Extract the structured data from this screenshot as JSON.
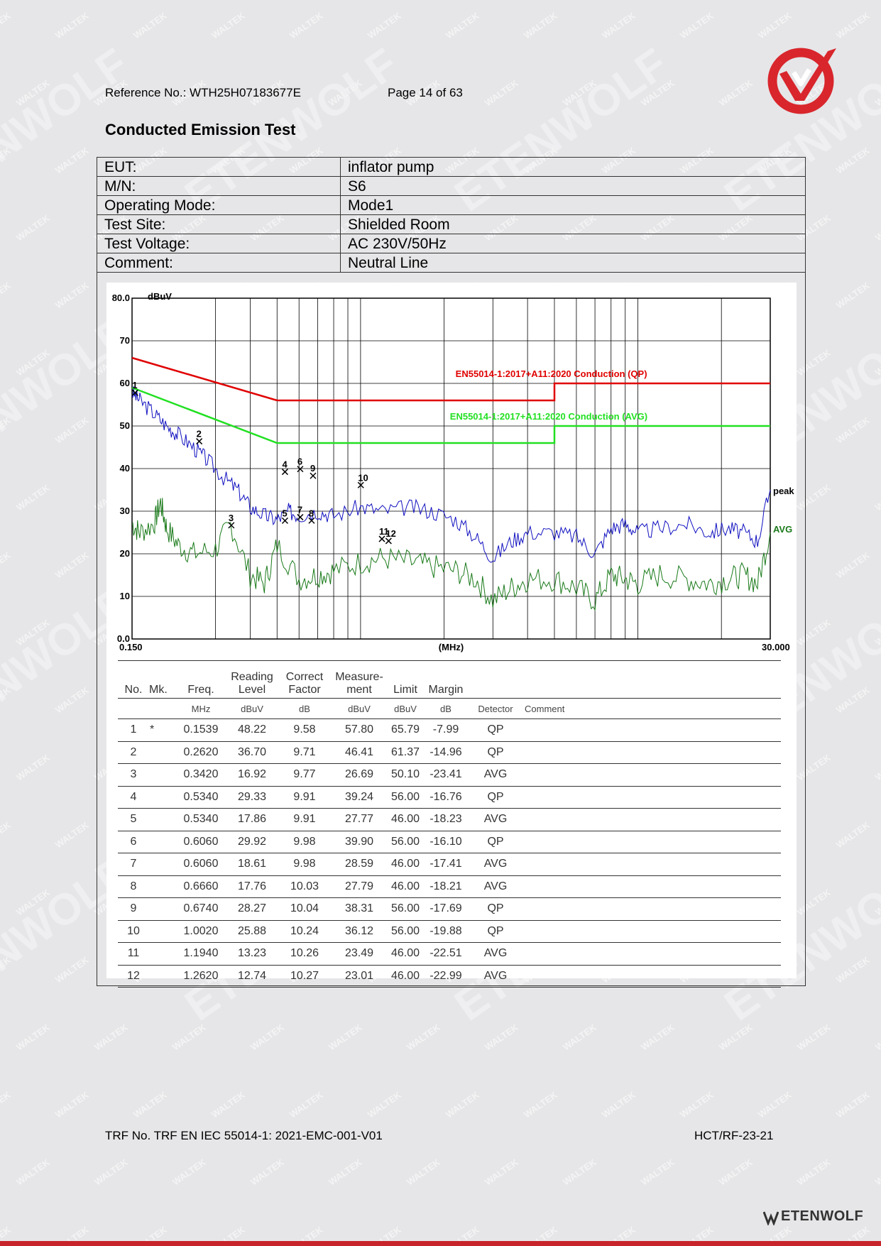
{
  "header": {
    "reference": "Reference No.: WTH25H07183677E",
    "page": "Page 14 of 63",
    "title": "Conducted Emission Test"
  },
  "colors": {
    "brand_red": "#d8262c",
    "qp_limit": "#e00000",
    "avg_limit": "#22e022",
    "peak_trace": "#1010c0",
    "avg_trace": "#1a7a1a"
  },
  "info": [
    {
      "label": "EUT:",
      "value": "inflator pump"
    },
    {
      "label": "M/N:",
      "value": "S6"
    },
    {
      "label": "Operating Mode:",
      "value": "Mode1"
    },
    {
      "label": "Test Site:",
      "value": "Shielded Room"
    },
    {
      "label": "Test Voltage:",
      "value": "AC 230V/50Hz"
    },
    {
      "label": "Comment:",
      "value": "Neutral Line"
    }
  ],
  "chart_data": {
    "type": "line",
    "xscale": "log",
    "xlim": [
      0.15,
      30
    ],
    "ylim": [
      0,
      80
    ],
    "ylabel": "dBuV",
    "xlabel": "(MHz)",
    "x_tick_labels": [
      "0.150",
      "30.000"
    ],
    "y_tick_labels": [
      "0.0",
      "10",
      "20",
      "30",
      "40",
      "50",
      "60",
      "70",
      "80.0"
    ],
    "limit_qp": {
      "name": "EN55014-1:2017+A11:2020 Conduction (QP)",
      "x": [
        0.15,
        0.5,
        0.5,
        5,
        5,
        30
      ],
      "y": [
        66,
        56,
        56,
        56,
        60,
        60
      ]
    },
    "limit_avg": {
      "name": "EN55014-1:2017+A11:2020 Conduction (AVG)",
      "x": [
        0.15,
        0.5,
        0.5,
        5,
        5,
        30
      ],
      "y": [
        59,
        46,
        46,
        46,
        50,
        50
      ]
    },
    "series": [
      {
        "name": "peak",
        "x": [
          0.15,
          0.16,
          0.18,
          0.2,
          0.22,
          0.25,
          0.28,
          0.32,
          0.36,
          0.4,
          0.45,
          0.5,
          0.55,
          0.6,
          0.7,
          0.8,
          1.0,
          1.2,
          1.5,
          1.8,
          2.2,
          2.6,
          3.0,
          3.5,
          4.0,
          5.0,
          6.0,
          7.0,
          8.0,
          9.0,
          10.0,
          12.0,
          15.0,
          18.0,
          21.0,
          24.0,
          27.0,
          30.0
        ],
        "y": [
          58,
          56,
          53,
          50,
          48,
          45,
          42,
          38,
          35,
          31,
          29,
          28,
          30,
          29,
          30,
          29,
          31,
          30,
          31,
          30,
          28,
          24,
          19,
          23,
          25,
          25,
          24,
          20,
          26,
          27,
          25,
          26,
          27,
          25,
          26,
          25,
          23,
          35
        ]
      },
      {
        "name": "AVG",
        "x": [
          0.15,
          0.16,
          0.18,
          0.19,
          0.2,
          0.22,
          0.25,
          0.3,
          0.34,
          0.4,
          0.45,
          0.5,
          0.6,
          0.7,
          0.8,
          1.0,
          1.2,
          1.5,
          1.8,
          2.2,
          2.6,
          3.0,
          3.5,
          4.0,
          5.0,
          6.0,
          7.0,
          8.0,
          9.0,
          10.0,
          12.0,
          15.0,
          18.0,
          21.0,
          24.0,
          27.0,
          30.0
        ],
        "y": [
          27,
          25,
          27,
          32,
          26,
          22,
          20,
          21,
          27,
          15,
          13,
          22,
          14,
          15,
          16,
          18,
          19,
          18,
          17,
          16,
          14,
          9,
          12,
          14,
          14,
          12,
          9,
          15,
          14,
          13,
          15,
          14,
          13,
          14,
          15,
          13,
          25
        ]
      }
    ],
    "markers": [
      {
        "label": "1",
        "x": 0.1539,
        "y": 57.8
      },
      {
        "label": "2",
        "x": 0.262,
        "y": 46.41
      },
      {
        "label": "3",
        "x": 0.342,
        "y": 26.69
      },
      {
        "label": "4",
        "x": 0.534,
        "y": 39.24
      },
      {
        "label": "5",
        "x": 0.534,
        "y": 27.77
      },
      {
        "label": "6",
        "x": 0.606,
        "y": 39.9
      },
      {
        "label": "7",
        "x": 0.606,
        "y": 28.59
      },
      {
        "label": "8",
        "x": 0.666,
        "y": 27.79
      },
      {
        "label": "9",
        "x": 0.674,
        "y": 38.31
      },
      {
        "label": "10",
        "x": 1.002,
        "y": 36.12
      },
      {
        "label": "11",
        "x": 1.194,
        "y": 23.49
      },
      {
        "label": "12",
        "x": 1.262,
        "y": 23.01
      }
    ]
  },
  "results": {
    "headers": [
      "No.",
      "Mk.",
      "Freq.",
      "Reading Level",
      "Correct Factor",
      "Measure-ment",
      "Limit",
      "Margin",
      "",
      ""
    ],
    "units": [
      "",
      "",
      "MHz",
      "dBuV",
      "dB",
      "dBuV",
      "dBuV",
      "dB",
      "Detector",
      "Comment"
    ],
    "rows": [
      [
        "1",
        "*",
        "0.1539",
        "48.22",
        "9.58",
        "57.80",
        "65.79",
        "-7.99",
        "QP",
        ""
      ],
      [
        "2",
        "",
        "0.2620",
        "36.70",
        "9.71",
        "46.41",
        "61.37",
        "-14.96",
        "QP",
        ""
      ],
      [
        "3",
        "",
        "0.3420",
        "16.92",
        "9.77",
        "26.69",
        "50.10",
        "-23.41",
        "AVG",
        ""
      ],
      [
        "4",
        "",
        "0.5340",
        "29.33",
        "9.91",
        "39.24",
        "56.00",
        "-16.76",
        "QP",
        ""
      ],
      [
        "5",
        "",
        "0.5340",
        "17.86",
        "9.91",
        "27.77",
        "46.00",
        "-18.23",
        "AVG",
        ""
      ],
      [
        "6",
        "",
        "0.6060",
        "29.92",
        "9.98",
        "39.90",
        "56.00",
        "-16.10",
        "QP",
        ""
      ],
      [
        "7",
        "",
        "0.6060",
        "18.61",
        "9.98",
        "28.59",
        "46.00",
        "-17.41",
        "AVG",
        ""
      ],
      [
        "8",
        "",
        "0.6660",
        "17.76",
        "10.03",
        "27.79",
        "46.00",
        "-18.21",
        "AVG",
        ""
      ],
      [
        "9",
        "",
        "0.6740",
        "28.27",
        "10.04",
        "38.31",
        "56.00",
        "-17.69",
        "QP",
        ""
      ],
      [
        "10",
        "",
        "1.0020",
        "25.88",
        "10.24",
        "36.12",
        "56.00",
        "-19.88",
        "QP",
        ""
      ],
      [
        "11",
        "",
        "1.1940",
        "13.23",
        "10.26",
        "23.49",
        "46.00",
        "-22.51",
        "AVG",
        ""
      ],
      [
        "12",
        "",
        "1.2620",
        "12.74",
        "10.27",
        "23.01",
        "46.00",
        "-22.99",
        "AVG",
        ""
      ]
    ]
  },
  "footer": {
    "trf": "TRF No. TRF EN IEC 55014-1: 2021-EMC-001-V01",
    "code": "HCT/RF-23-21",
    "brand": "ETENWOLF"
  },
  "watermark": {
    "text_1": "WALTEK",
    "text_2": "ETENWOLF"
  }
}
